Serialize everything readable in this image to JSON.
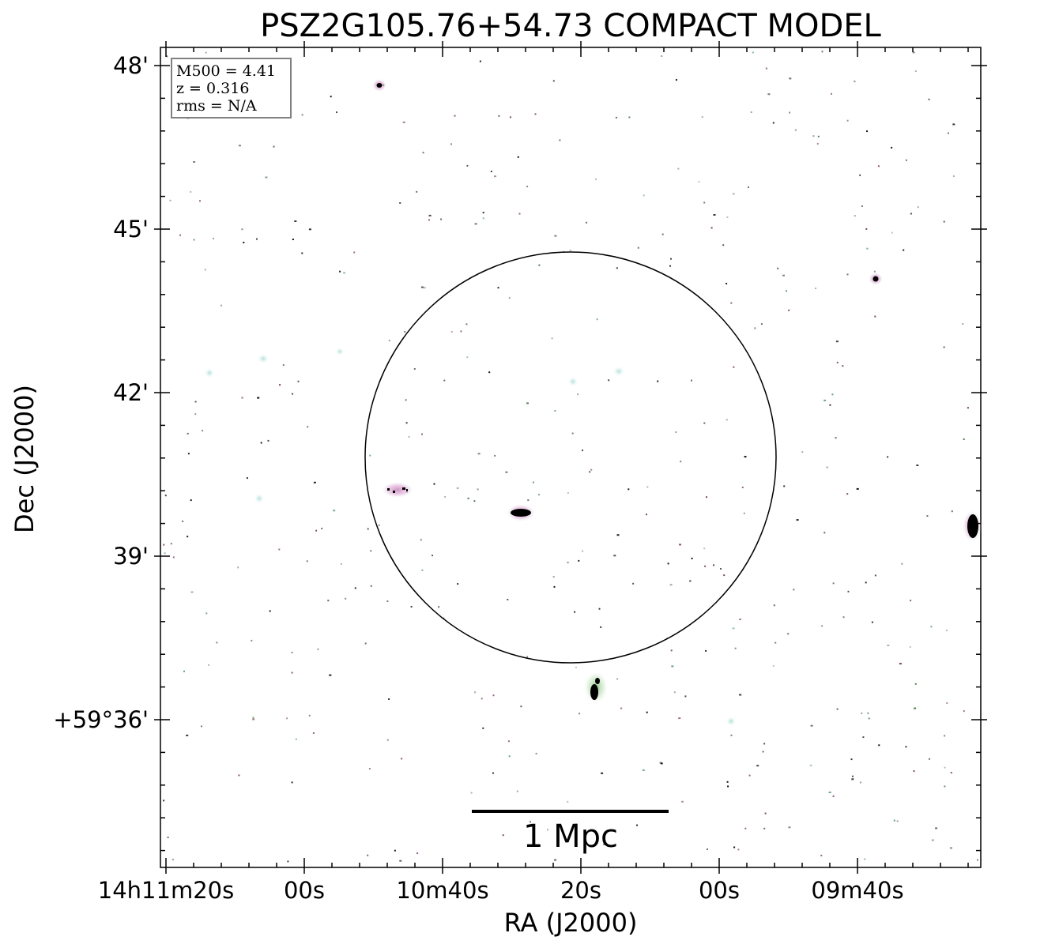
{
  "title": "PSZ2G105.76+54.73 COMPACT MODEL",
  "info_box": {
    "lines": [
      "M500 = 4.41",
      "z = 0.316",
      "rms = N/A"
    ]
  },
  "axes": {
    "xlabel": "RA (J2000)",
    "ylabel": "Dec (J2000)",
    "x_ticks": [
      "14h11m20s",
      "00s",
      "10m40s",
      "20s",
      "00s",
      "09m40s"
    ],
    "y_ticks": [
      "48'",
      "45'",
      "42'",
      "39'",
      "+59°36'"
    ]
  },
  "scalebar": {
    "label": "1 Mpc"
  },
  "colors": {
    "source_core": "#000000",
    "source_halo_pink": "#e2a6d6",
    "source_halo_cyan": "#bfe6e0",
    "circle": "#000000"
  }
}
